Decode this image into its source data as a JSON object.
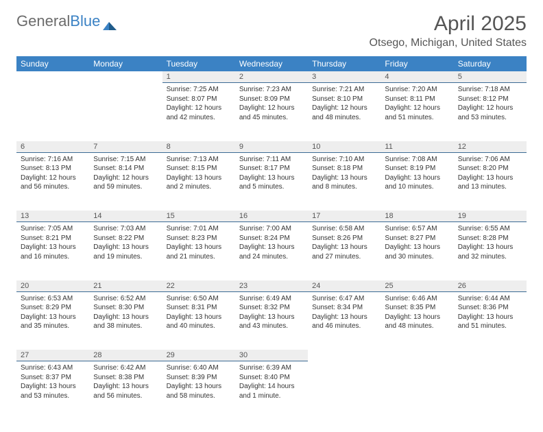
{
  "logo": {
    "text1": "General",
    "text2": "Blue"
  },
  "title": "April 2025",
  "location": "Otsego, Michigan, United States",
  "colors": {
    "header_bg": "#3b82c4",
    "header_text": "#ffffff",
    "daynum_bg": "#eeeeee",
    "daynum_border": "#3b6a94",
    "body_text": "#333333",
    "title_text": "#555555"
  },
  "day_headers": [
    "Sunday",
    "Monday",
    "Tuesday",
    "Wednesday",
    "Thursday",
    "Friday",
    "Saturday"
  ],
  "weeks": [
    [
      null,
      null,
      {
        "n": "1",
        "sr": "7:25 AM",
        "ss": "8:07 PM",
        "dl": "12 hours and 42 minutes."
      },
      {
        "n": "2",
        "sr": "7:23 AM",
        "ss": "8:09 PM",
        "dl": "12 hours and 45 minutes."
      },
      {
        "n": "3",
        "sr": "7:21 AM",
        "ss": "8:10 PM",
        "dl": "12 hours and 48 minutes."
      },
      {
        "n": "4",
        "sr": "7:20 AM",
        "ss": "8:11 PM",
        "dl": "12 hours and 51 minutes."
      },
      {
        "n": "5",
        "sr": "7:18 AM",
        "ss": "8:12 PM",
        "dl": "12 hours and 53 minutes."
      }
    ],
    [
      {
        "n": "6",
        "sr": "7:16 AM",
        "ss": "8:13 PM",
        "dl": "12 hours and 56 minutes."
      },
      {
        "n": "7",
        "sr": "7:15 AM",
        "ss": "8:14 PM",
        "dl": "12 hours and 59 minutes."
      },
      {
        "n": "8",
        "sr": "7:13 AM",
        "ss": "8:15 PM",
        "dl": "13 hours and 2 minutes."
      },
      {
        "n": "9",
        "sr": "7:11 AM",
        "ss": "8:17 PM",
        "dl": "13 hours and 5 minutes."
      },
      {
        "n": "10",
        "sr": "7:10 AM",
        "ss": "8:18 PM",
        "dl": "13 hours and 8 minutes."
      },
      {
        "n": "11",
        "sr": "7:08 AM",
        "ss": "8:19 PM",
        "dl": "13 hours and 10 minutes."
      },
      {
        "n": "12",
        "sr": "7:06 AM",
        "ss": "8:20 PM",
        "dl": "13 hours and 13 minutes."
      }
    ],
    [
      {
        "n": "13",
        "sr": "7:05 AM",
        "ss": "8:21 PM",
        "dl": "13 hours and 16 minutes."
      },
      {
        "n": "14",
        "sr": "7:03 AM",
        "ss": "8:22 PM",
        "dl": "13 hours and 19 minutes."
      },
      {
        "n": "15",
        "sr": "7:01 AM",
        "ss": "8:23 PM",
        "dl": "13 hours and 21 minutes."
      },
      {
        "n": "16",
        "sr": "7:00 AM",
        "ss": "8:24 PM",
        "dl": "13 hours and 24 minutes."
      },
      {
        "n": "17",
        "sr": "6:58 AM",
        "ss": "8:26 PM",
        "dl": "13 hours and 27 minutes."
      },
      {
        "n": "18",
        "sr": "6:57 AM",
        "ss": "8:27 PM",
        "dl": "13 hours and 30 minutes."
      },
      {
        "n": "19",
        "sr": "6:55 AM",
        "ss": "8:28 PM",
        "dl": "13 hours and 32 minutes."
      }
    ],
    [
      {
        "n": "20",
        "sr": "6:53 AM",
        "ss": "8:29 PM",
        "dl": "13 hours and 35 minutes."
      },
      {
        "n": "21",
        "sr": "6:52 AM",
        "ss": "8:30 PM",
        "dl": "13 hours and 38 minutes."
      },
      {
        "n": "22",
        "sr": "6:50 AM",
        "ss": "8:31 PM",
        "dl": "13 hours and 40 minutes."
      },
      {
        "n": "23",
        "sr": "6:49 AM",
        "ss": "8:32 PM",
        "dl": "13 hours and 43 minutes."
      },
      {
        "n": "24",
        "sr": "6:47 AM",
        "ss": "8:34 PM",
        "dl": "13 hours and 46 minutes."
      },
      {
        "n": "25",
        "sr": "6:46 AM",
        "ss": "8:35 PM",
        "dl": "13 hours and 48 minutes."
      },
      {
        "n": "26",
        "sr": "6:44 AM",
        "ss": "8:36 PM",
        "dl": "13 hours and 51 minutes."
      }
    ],
    [
      {
        "n": "27",
        "sr": "6:43 AM",
        "ss": "8:37 PM",
        "dl": "13 hours and 53 minutes."
      },
      {
        "n": "28",
        "sr": "6:42 AM",
        "ss": "8:38 PM",
        "dl": "13 hours and 56 minutes."
      },
      {
        "n": "29",
        "sr": "6:40 AM",
        "ss": "8:39 PM",
        "dl": "13 hours and 58 minutes."
      },
      {
        "n": "30",
        "sr": "6:39 AM",
        "ss": "8:40 PM",
        "dl": "14 hours and 1 minute."
      },
      null,
      null,
      null
    ]
  ],
  "labels": {
    "sunrise": "Sunrise: ",
    "sunset": "Sunset: ",
    "daylight": "Daylight: "
  }
}
